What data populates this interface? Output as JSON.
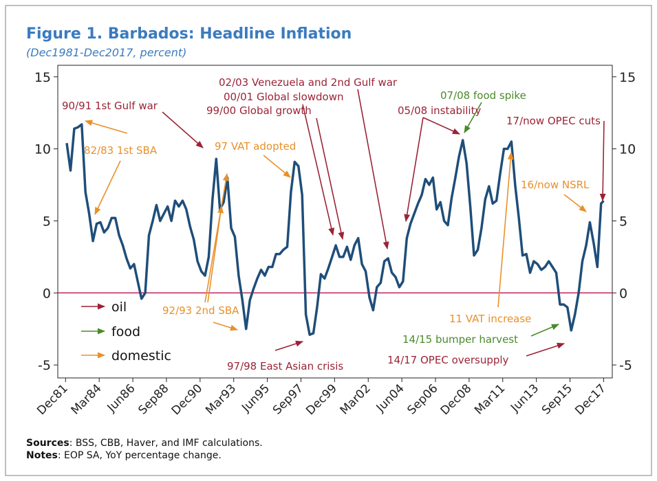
{
  "chart_data": {
    "type": "line",
    "title": "Figure 1. Barbados: Headline Inflation",
    "subtitle": "(Dec1981-Dec2017, percent)",
    "x": [
      1982,
      1982.25,
      1982.5,
      1982.75,
      1983,
      1983.25,
      1983.5,
      1983.75,
      1984,
      1984.25,
      1984.5,
      1984.75,
      1985,
      1985.25,
      1985.5,
      1985.75,
      1986,
      1986.25,
      1986.5,
      1986.75,
      1987,
      1987.25,
      1987.5,
      1987.75,
      1988,
      1988.25,
      1988.5,
      1988.75,
      1989,
      1989.25,
      1989.5,
      1989.75,
      1990,
      1990.25,
      1990.5,
      1990.75,
      1991,
      1991.25,
      1991.5,
      1991.75,
      1992,
      1992.25,
      1992.5,
      1992.75,
      1993,
      1993.25,
      1993.5,
      1993.75,
      1994,
      1994.25,
      1994.5,
      1994.75,
      1995,
      1995.25,
      1995.5,
      1995.75,
      1996,
      1996.25,
      1996.5,
      1996.75,
      1997,
      1997.25,
      1997.5,
      1997.75,
      1998,
      1998.25,
      1998.5,
      1998.75,
      1999,
      1999.25,
      1999.5,
      1999.75,
      2000,
      2000.25,
      2000.5,
      2000.75,
      2001,
      2001.25,
      2001.5,
      2001.75,
      2002,
      2002.25,
      2002.5,
      2002.75,
      2003,
      2003.25,
      2003.5,
      2003.75,
      2004,
      2004.25,
      2004.5,
      2004.75,
      2005,
      2005.25,
      2005.5,
      2005.75,
      2006,
      2006.25,
      2006.5,
      2006.75,
      2007,
      2007.25,
      2007.5,
      2007.75,
      2008,
      2008.25,
      2008.5,
      2008.75,
      2009,
      2009.25,
      2009.5,
      2009.75,
      2010,
      2010.25,
      2010.5,
      2010.75,
      2011,
      2011.25,
      2011.5,
      2011.75,
      2012,
      2012.25,
      2012.5,
      2012.75,
      2013,
      2013.25,
      2013.5,
      2013.75,
      2014,
      2014.25,
      2014.5,
      2014.75,
      2015,
      2015.25,
      2015.5,
      2015.75,
      2016,
      2016.25,
      2016.5,
      2016.75,
      2017,
      2017.25,
      2017.5,
      2017.75,
      2017.92
    ],
    "series": [
      {
        "color": "#1f4e79",
        "values": [
          10.4,
          8.5,
          11.4,
          11.5,
          11.7,
          7,
          5.5,
          3.6,
          4.8,
          4.9,
          4.2,
          4.5,
          5.2,
          5.2,
          4,
          3.3,
          2.4,
          1.7,
          2,
          0.8,
          -0.4,
          0,
          4,
          5,
          6.1,
          5,
          5.5,
          6,
          5,
          6.4,
          6,
          6.4,
          5.8,
          4.6,
          3.7,
          2.2,
          1.5,
          1.2,
          2.5,
          6.5,
          9.3,
          5.8,
          6.3,
          8,
          4.5,
          3.9,
          1.2,
          -0.5,
          -2.5,
          -0.5,
          0.3,
          1,
          1.6,
          1.2,
          1.8,
          1.8,
          2.7,
          2.7,
          3,
          3.2,
          7,
          9.1,
          8.8,
          6.8,
          -1.5,
          -2.9,
          -2.8,
          -1,
          1.3,
          1,
          1.7,
          2.5,
          3.3,
          2.5,
          2.5,
          3.2,
          2.3,
          3.3,
          3.8,
          2,
          1.5,
          -0.3,
          -1.2,
          0.4,
          0.7,
          2.2,
          2.4,
          1.4,
          1.1,
          0.4,
          0.8,
          3.8,
          4.8,
          5.5,
          6.2,
          6.8,
          7.9,
          7.5,
          8,
          5.8,
          6.3,
          5,
          4.7,
          6.6,
          8,
          9.5,
          10.6,
          9,
          6,
          2.6,
          3,
          4.5,
          6.5,
          7.4,
          6.2,
          6.4,
          8.3,
          10,
          10,
          10.5,
          7.5,
          5.2,
          2.6,
          2.7,
          1.4,
          2.2,
          2,
          1.6,
          1.8,
          2.2,
          1.8,
          1.4,
          -0.8,
          -0.8,
          -1,
          -2.6,
          -1.5,
          0,
          2.2,
          3.3,
          4.9,
          3.5,
          1.8,
          6.2,
          6.4
        ]
      }
    ],
    "xlim": [
      1981.4,
      2018.5
    ],
    "xticks": [
      {
        "value": 1981.92,
        "label": "Dec81"
      },
      {
        "value": 1984.17,
        "label": "Mar84"
      },
      {
        "value": 1986.42,
        "label": "Jun86"
      },
      {
        "value": 1988.67,
        "label": "Sep88"
      },
      {
        "value": 1990.92,
        "label": "Dec90"
      },
      {
        "value": 1993.17,
        "label": "Mar93"
      },
      {
        "value": 1995.42,
        "label": "Jun95"
      },
      {
        "value": 1997.67,
        "label": "Sep97"
      },
      {
        "value": 1999.92,
        "label": "Dec99"
      },
      {
        "value": 2002.17,
        "label": "Mar02"
      },
      {
        "value": 2004.42,
        "label": "Jun04"
      },
      {
        "value": 2006.67,
        "label": "Sep06"
      },
      {
        "value": 2008.92,
        "label": "Dec08"
      },
      {
        "value": 2011.17,
        "label": "Mar11"
      },
      {
        "value": 2013.42,
        "label": "Jun13"
      },
      {
        "value": 2015.67,
        "label": "Sep15"
      },
      {
        "value": 2017.92,
        "label": "Dec17"
      }
    ],
    "ylim": [
      -5.9,
      15.8
    ],
    "yticks": [
      -5,
      0,
      5,
      10,
      15
    ],
    "y2lim": [
      -5.9,
      15.8
    ],
    "y2ticks": [
      -5,
      0,
      5,
      10,
      15
    ],
    "grid": false,
    "zero_line_color": "#c0245c",
    "legend": [
      {
        "name": "oil",
        "color": "#9b2335"
      },
      {
        "name": "food",
        "color": "#4a8a2a"
      },
      {
        "name": "domestic",
        "color": "#e8902a"
      }
    ],
    "annotations": [
      {
        "text": "90/91 1st Gulf war",
        "color": "#9b2335"
      },
      {
        "text": "82/83 1st SBA",
        "color": "#e8902a"
      },
      {
        "text": "02/03 Venezuela and 2nd Gulf war",
        "color": "#9b2335"
      },
      {
        "text": "00/01 Global slowdown",
        "color": "#9b2335"
      },
      {
        "text": "99/00 Global growth",
        "color": "#9b2335"
      },
      {
        "text": "97 VAT adopted",
        "color": "#e8902a"
      },
      {
        "text": "05/08 instability",
        "color": "#9b2335"
      },
      {
        "text": "07/08 food spike",
        "color": "#4a8a2a"
      },
      {
        "text": "17/now OPEC cuts",
        "color": "#9b2335"
      },
      {
        "text": "16/now NSRL",
        "color": "#e8902a"
      },
      {
        "text": "92/93 2nd SBA",
        "color": "#e8902a"
      },
      {
        "text": "97/98 East Asian crisis",
        "color": "#9b2335"
      },
      {
        "text": "11 VAT increase",
        "color": "#e8902a"
      },
      {
        "text": "14/15 bumper harvest",
        "color": "#4a8a2a"
      },
      {
        "text": "14/17 OPEC oversupply",
        "color": "#9b2335"
      }
    ],
    "notes": [
      {
        "label": "Sources",
        "text": ": BSS, CBB, Haver, and IMF calculations."
      },
      {
        "label": "Notes",
        "text": ": EOP SA, YoY percentage change."
      }
    ]
  }
}
